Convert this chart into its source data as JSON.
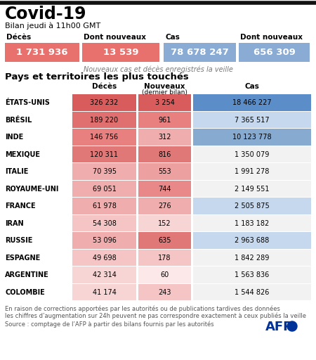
{
  "title": "Covid-19",
  "subtitle": "Bilan jeudi à 11h00 GMT",
  "sum_headers": [
    "Décès",
    "Dont nouveaux",
    "Cas",
    "Dont nouveaux"
  ],
  "sum_values": [
    "1 731 936",
    "13 539",
    "78 678 247",
    "656 309"
  ],
  "sum_colors": [
    "#e8716e",
    "#e8716e",
    "#8aabd4",
    "#8aabd4"
  ],
  "note": "Nouveaux cas et décès enregistrés la veille",
  "section_title": "Pays et territoires les plus touchés",
  "countries": [
    "ÉTATS-UNIS",
    "BRÉSIL",
    "INDE",
    "MEXIQUE",
    "ITALIE",
    "ROYAUME-UNI",
    "FRANCE",
    "IRAN",
    "RUSSIE",
    "ESPAGNE",
    "ARGENTINE",
    "COLOMBIE"
  ],
  "deaths": [
    "326 232",
    "189 220",
    "146 756",
    "120 311",
    "70 395",
    "69 051",
    "61 978",
    "54 308",
    "53 096",
    "49 698",
    "42 314",
    "41 174"
  ],
  "new_vals": [
    "3 254",
    "961",
    "312",
    "816",
    "553",
    "744",
    "276",
    "152",
    "635",
    "178",
    "60",
    "243"
  ],
  "cases": [
    "18 466 227",
    "7 365 517",
    "10 123 778",
    "1 350 079",
    "1 991 278",
    "2 149 551",
    "2 505 875",
    "1 183 182",
    "2 963 688",
    "1 842 289",
    "1 563 836",
    "1 544 826"
  ],
  "death_colors": [
    "#d95c5c",
    "#e07070",
    "#e88080",
    "#e07878",
    "#f0adad",
    "#f0adad",
    "#f0adad",
    "#f5c5c5",
    "#f0adad",
    "#f5c5c5",
    "#f8d5d5",
    "#f8d5d5"
  ],
  "new_colors": [
    "#d95c5c",
    "#e88080",
    "#f0adad",
    "#e07878",
    "#eda0a0",
    "#e88888",
    "#f0adad",
    "#f8d5d5",
    "#e07878",
    "#f5c5c5",
    "#fce8e8",
    "#f5c5c5"
  ],
  "cases_colors": [
    "#5b8ec8",
    "#c5d8ee",
    "#87aad0",
    "#f2f2f2",
    "#f2f2f2",
    "#f2f2f2",
    "#c5d8ee",
    "#f2f2f2",
    "#c5d8ee",
    "#f2f2f2",
    "#f2f2f2",
    "#f2f2f2"
  ],
  "footer1": "En raison de corrections apportées par les autorités ou de publications tardives des données",
  "footer2": "les chiffres d’augmentation sur 24h peuvent ne pas correspondre exactement à ceux publiés la veille",
  "source": "Source : comptage de l’AFP à partir des bilans fournis par les autorités",
  "bg_color": "#ffffff"
}
